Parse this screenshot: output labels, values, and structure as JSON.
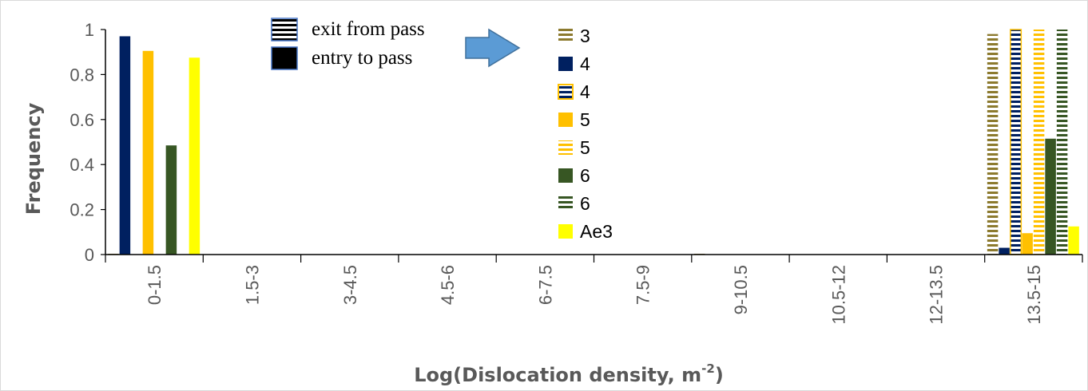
{
  "chart_data": {
    "type": "bar",
    "title": "",
    "xlabel": "Log(Dislocation density, m",
    "xlabel_sup": "-2",
    "xlabel_tail": ")",
    "ylabel": "Frequency",
    "ylim": [
      0,
      1
    ],
    "yticks": [
      "0",
      "0.2",
      "0.4",
      "0.6",
      "0.8",
      "1"
    ],
    "ytick_values": [
      0,
      0.2,
      0.4,
      0.6,
      0.8,
      1
    ],
    "categories": [
      "0-1.5",
      "1.5-3",
      "3-4.5",
      "4.5-6",
      "6-7.5",
      "7.5-9",
      "9-10.5",
      "10.5-12",
      "12-13.5",
      "13.5-15"
    ],
    "grid": false,
    "legend_position": "center",
    "series": [
      {
        "name": "3",
        "color": "#8c7a2e",
        "pattern": "stripes",
        "values": [
          0.01,
          0,
          0,
          0,
          0,
          0,
          0.005,
          0,
          0,
          0.98
        ]
      },
      {
        "name": "4",
        "color": "#002060",
        "pattern": "solid",
        "values": [
          0.97,
          0,
          0,
          0,
          0,
          0,
          0,
          0,
          0,
          0.03
        ]
      },
      {
        "name": "4",
        "color": "#002060",
        "pattern": "stripes",
        "border": "#ffc000",
        "values": [
          0,
          0,
          0,
          0,
          0,
          0,
          0,
          0,
          0,
          1.0
        ]
      },
      {
        "name": "5",
        "color": "#ffc000",
        "pattern": "solid",
        "values": [
          0.905,
          0,
          0,
          0,
          0,
          0,
          0,
          0,
          0,
          0.095
        ]
      },
      {
        "name": "5",
        "color": "#ffc000",
        "pattern": "stripes",
        "values": [
          0,
          0,
          0,
          0,
          0,
          0,
          0,
          0,
          0,
          1.0
        ]
      },
      {
        "name": "6",
        "color": "#375623",
        "pattern": "solid",
        "values": [
          0.485,
          0,
          0,
          0,
          0,
          0,
          0,
          0,
          0,
          0.515
        ]
      },
      {
        "name": "6",
        "color": "#375623",
        "pattern": "stripes",
        "values": [
          0,
          0,
          0,
          0,
          0,
          0,
          0,
          0,
          0,
          1.0
        ]
      },
      {
        "name": "Ae3",
        "color": "#ffff00",
        "pattern": "solid",
        "values": [
          0.875,
          0,
          0,
          0,
          0,
          0,
          0,
          0,
          0,
          0.125
        ]
      }
    ],
    "annotation": {
      "pattern_key": [
        {
          "label": "exit from pass",
          "pattern": "stripes"
        },
        {
          "label": "entry to pass",
          "pattern": "solid"
        }
      ],
      "arrow_color": "#5b9bd5"
    }
  }
}
